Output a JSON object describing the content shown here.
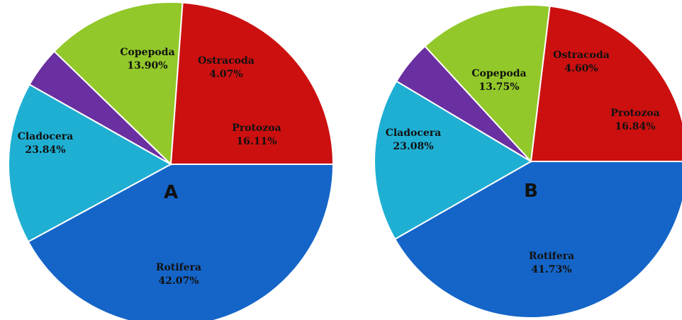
{
  "chart_data": [
    {
      "type": "pie",
      "panel_label": "A",
      "slices": [
        {
          "label": "Rotifera",
          "value": 42.07,
          "text": "42.07%",
          "color": "#1565c8"
        },
        {
          "label": "Protozoa",
          "value": 16.11,
          "text": "16.11%",
          "color": "#1fafd3"
        },
        {
          "label": "Ostracoda",
          "value": 4.07,
          "text": "4.07%",
          "color": "#6a2fa0"
        },
        {
          "label": "Copepoda",
          "value": 13.9,
          "text": "13.90%",
          "color": "#92c82a"
        },
        {
          "label": "Cladocera",
          "value": 23.84,
          "text": "23.84%",
          "color": "#cc1010"
        }
      ]
    },
    {
      "type": "pie",
      "panel_label": "B",
      "slices": [
        {
          "label": "Rotifera",
          "value": 41.73,
          "text": "41.73%",
          "color": "#1565c8"
        },
        {
          "label": "Protozoa",
          "value": 16.84,
          "text": "16.84%",
          "color": "#1fafd3"
        },
        {
          "label": "Ostracoda",
          "value": 4.6,
          "text": "4.60%",
          "color": "#6a2fa0"
        },
        {
          "label": "Copepoda",
          "value": 13.75,
          "text": "13.75%",
          "color": "#92c82a"
        },
        {
          "label": "Cladocera",
          "value": 23.08,
          "text": "23.08%",
          "color": "#cc1010"
        }
      ]
    }
  ]
}
